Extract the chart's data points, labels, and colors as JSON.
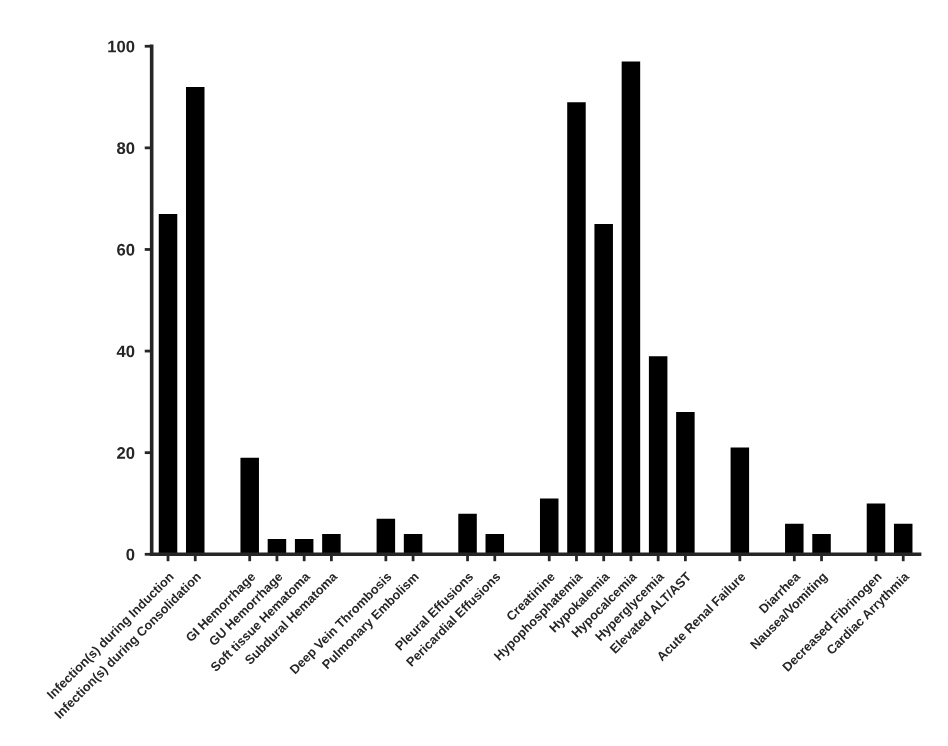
{
  "chart_data": {
    "type": "bar",
    "categories": [
      "Infection(s) during Induction",
      "Infection(s) during Consolidation",
      null,
      "GI Hemorrhage",
      "GU Hemorrhage",
      "Soft tissue Hematoma",
      "Subdural Hematoma",
      null,
      "Deep Vein Thrombosis",
      "Pulmonary Embolism",
      null,
      "Pleural Effusions",
      "Pericardial Effusions",
      null,
      "Creatinine",
      "Hypophosphatemia",
      "Hypokalemia",
      "Hypocalcemia",
      "Hyperglycemia",
      "Elevated ALT/AST",
      null,
      "Acute Renal Failure",
      null,
      "Diarrhea",
      "Nausea/Vomiting",
      null,
      "Decreased Fibrinogen",
      "Cardiac Arrythmia"
    ],
    "values": [
      67,
      92,
      null,
      19,
      3,
      3,
      4,
      null,
      7,
      4,
      null,
      8,
      4,
      null,
      11,
      89,
      65,
      97,
      39,
      28,
      null,
      21,
      null,
      6,
      4,
      null,
      10,
      6
    ],
    "color": "#000000",
    "ylim": [
      0,
      100
    ],
    "yticks": [
      0,
      20,
      40,
      60,
      80,
      100
    ],
    "grid": false,
    "legend": false
  }
}
